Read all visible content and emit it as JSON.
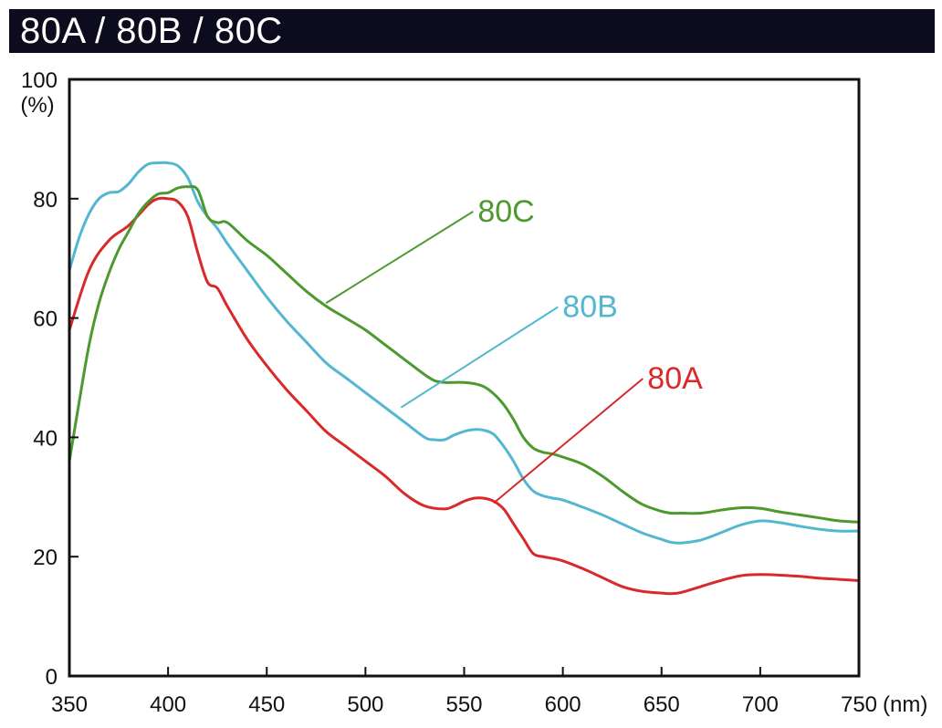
{
  "title": "80A / 80B / 80C",
  "chart_data": {
    "type": "line",
    "xlabel": "(nm)",
    "ylabel": "(%)",
    "xlim": [
      350,
      750
    ],
    "ylim": [
      0,
      100
    ],
    "xticks": [
      "350",
      "400",
      "450",
      "500",
      "550",
      "600",
      "650",
      "700",
      "750"
    ],
    "yticks": [
      "0",
      "20",
      "40",
      "60",
      "80",
      "100"
    ],
    "grid": false,
    "legend": "inline labels",
    "series": [
      {
        "name": "80A",
        "color": "#d9292b",
        "x": [
          350,
          360,
          370,
          380,
          390,
          395,
          400,
          405,
          410,
          415,
          420,
          425,
          430,
          440,
          450,
          460,
          470,
          480,
          490,
          500,
          510,
          520,
          530,
          540,
          545,
          550,
          555,
          560,
          565,
          570,
          575,
          580,
          585,
          590,
          595,
          600,
          610,
          620,
          630,
          640,
          650,
          655,
          660,
          670,
          680,
          690,
          700,
          710,
          720,
          730,
          740,
          750
        ],
        "values": [
          58,
          68,
          73,
          75.5,
          79,
          80,
          80,
          79.5,
          77,
          71,
          66,
          65,
          62,
          56.5,
          52,
          48,
          44.5,
          41,
          38.5,
          36,
          33.5,
          30.5,
          28.5,
          28,
          28.5,
          29.3,
          29.8,
          29.8,
          29.3,
          28,
          25.5,
          23,
          20.5,
          20,
          19.7,
          19.3,
          18,
          16.5,
          15,
          14.2,
          13.9,
          13.8,
          14,
          15,
          16,
          16.8,
          17,
          16.9,
          16.7,
          16.4,
          16.2,
          16
        ]
      },
      {
        "name": "80B",
        "color": "#53b7d1",
        "x": [
          350,
          355,
          360,
          365,
          370,
          375,
          380,
          385,
          390,
          395,
          400,
          405,
          410,
          415,
          420,
          425,
          430,
          440,
          450,
          460,
          470,
          480,
          490,
          500,
          510,
          520,
          530,
          535,
          540,
          545,
          550,
          555,
          560,
          565,
          570,
          575,
          580,
          585,
          590,
          595,
          600,
          610,
          620,
          630,
          640,
          650,
          655,
          660,
          670,
          680,
          690,
          700,
          710,
          720,
          730,
          740,
          750
        ],
        "values": [
          68,
          73.5,
          77.5,
          80,
          81,
          81.2,
          82.5,
          84.5,
          85.8,
          86,
          86,
          85.5,
          83.5,
          79.5,
          77,
          75,
          72.5,
          68,
          63.5,
          59.5,
          56,
          52.5,
          50,
          47.5,
          45,
          42.5,
          40,
          39.6,
          39.6,
          40.4,
          41,
          41.3,
          41.2,
          40.5,
          38.5,
          36,
          33,
          31,
          30.2,
          29.8,
          29.5,
          28.3,
          27,
          25.5,
          24,
          22.9,
          22.4,
          22.3,
          22.8,
          24,
          25.3,
          26,
          25.7,
          25.1,
          24.6,
          24.3,
          24.3
        ]
      },
      {
        "name": "80C",
        "color": "#4c9a2e",
        "x": [
          350,
          355,
          360,
          365,
          370,
          375,
          380,
          385,
          390,
          395,
          400,
          405,
          410,
          415,
          420,
          425,
          430,
          440,
          450,
          460,
          470,
          480,
          490,
          500,
          510,
          520,
          530,
          535,
          540,
          545,
          550,
          555,
          560,
          565,
          570,
          575,
          580,
          585,
          590,
          595,
          600,
          610,
          620,
          630,
          640,
          650,
          655,
          660,
          670,
          680,
          690,
          700,
          710,
          720,
          730,
          740,
          750
        ],
        "values": [
          36,
          46,
          55.5,
          62.5,
          67.5,
          71.5,
          74.5,
          77.5,
          79.5,
          80.8,
          81,
          81.8,
          82,
          81.5,
          77,
          76,
          76,
          73,
          70.5,
          67.5,
          64.5,
          62,
          60,
          58,
          55.5,
          53,
          50.5,
          49.5,
          49.2,
          49.2,
          49.2,
          49,
          48.5,
          47.3,
          45.5,
          43,
          40,
          38.2,
          37.5,
          37.2,
          36.7,
          35.5,
          33.5,
          31,
          28.8,
          27.6,
          27.3,
          27.3,
          27.3,
          27.8,
          28.2,
          28.1,
          27.5,
          27,
          26.5,
          26,
          25.8
        ]
      }
    ],
    "annotations": [
      {
        "text": "80C",
        "series": "80C",
        "at": [
          480,
          62.5
        ],
        "label_at": [
          555,
          78
        ]
      },
      {
        "text": "80B",
        "series": "80B",
        "at": [
          518,
          45
        ],
        "label_at": [
          598,
          62
        ]
      },
      {
        "text": "80A",
        "series": "80A",
        "at": [
          565,
          29
        ],
        "label_at": [
          641,
          50
        ]
      }
    ]
  }
}
